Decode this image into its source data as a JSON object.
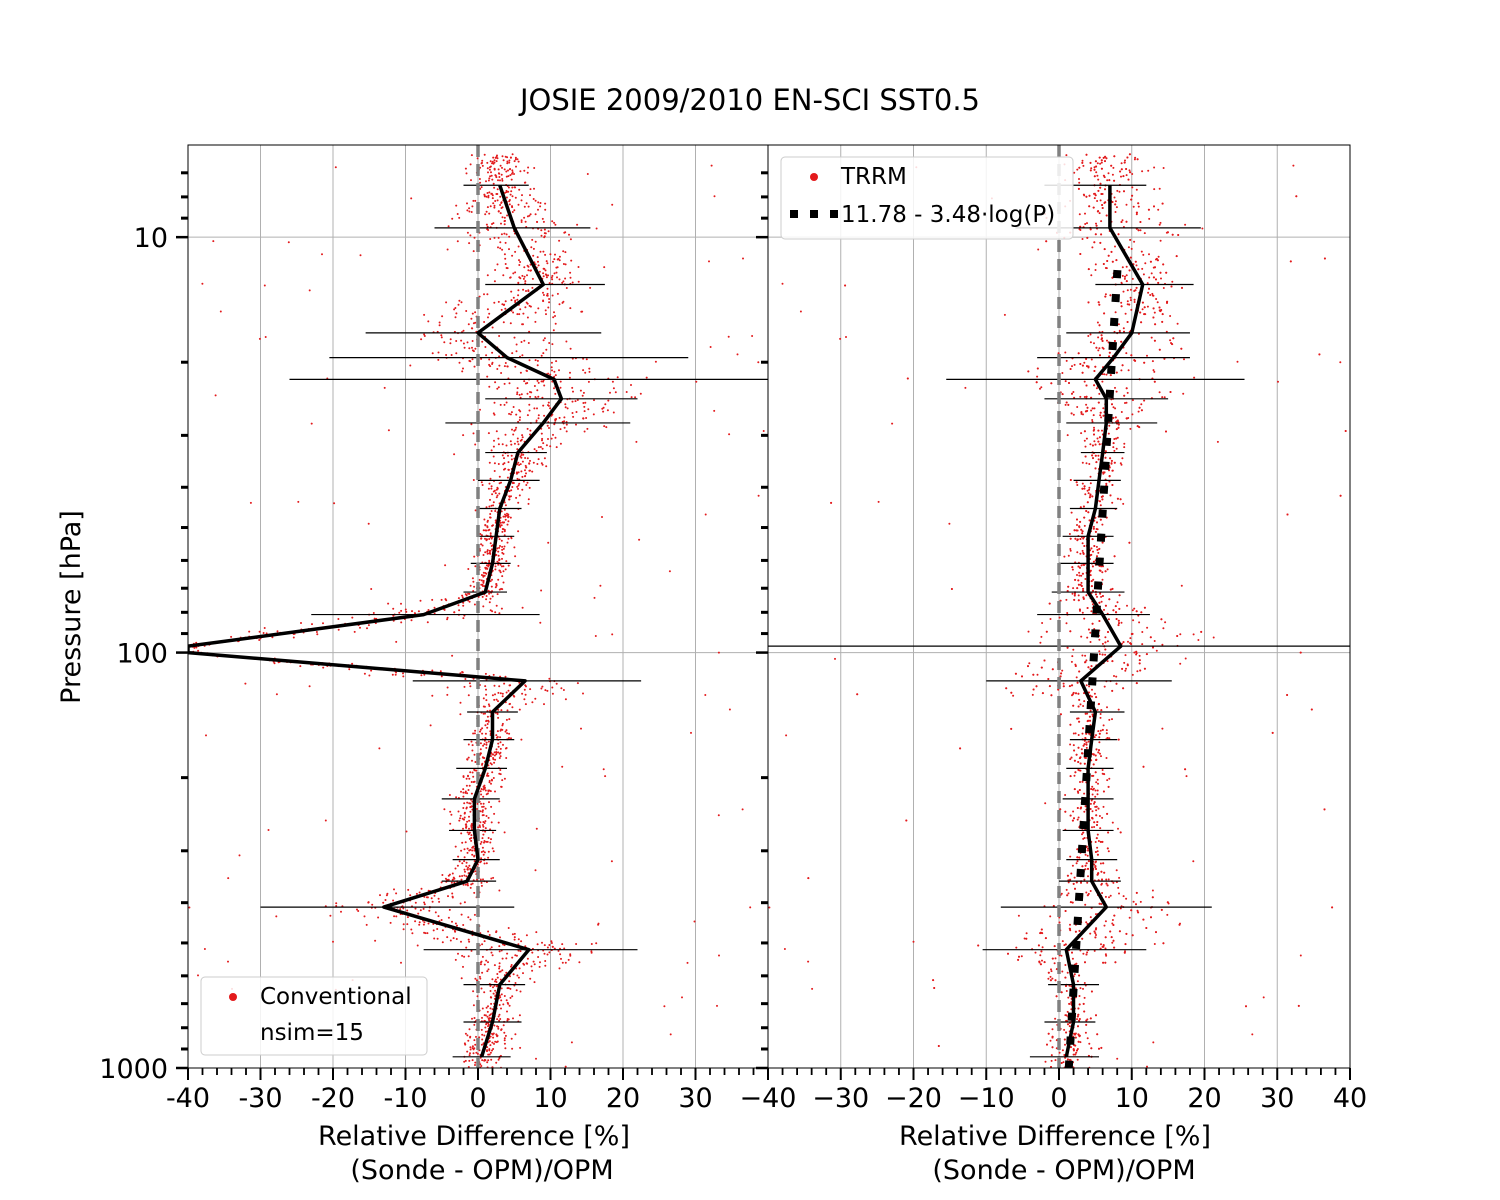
{
  "figure": {
    "title": "JOSIE 2009/2010 EN-SCI SST0.5",
    "ylabel": "Pressure [hPa]"
  },
  "chart_data": [
    {
      "type": "scatter",
      "panel": "left",
      "xlabel_line1": "Relative Difference [%]",
      "xlabel_line2": "(Sonde - OPM)/OPM",
      "xlim": [
        -40,
        40
      ],
      "ylim": [
        1000,
        6
      ],
      "yscale": "log",
      "grid": true,
      "xtick_labels": [
        "-40",
        "-30",
        "-20",
        "-10",
        "0",
        "10",
        "20",
        "30"
      ],
      "ytick_labels": [
        "10",
        "100",
        "1000"
      ],
      "legend_position": "lower-left",
      "legend": [
        "Conventional",
        "nsim=15"
      ],
      "scatter_color": "#e31a1c",
      "series": [
        {
          "name": "Conventional",
          "kind": "median-profile",
          "points": [
            {
              "p": 7.5,
              "x": 3,
              "lo": -2,
              "hi": 7
            },
            {
              "p": 9.5,
              "x": 5,
              "lo": -6,
              "hi": 15.5
            },
            {
              "p": 13,
              "x": 9,
              "lo": 1,
              "hi": 17.5
            },
            {
              "p": 17,
              "x": 0,
              "lo": -15.5,
              "hi": 17
            },
            {
              "p": 19.5,
              "x": 4,
              "lo": -20.5,
              "hi": 29
            },
            {
              "p": 22,
              "x": 10.5,
              "lo": -26,
              "hi": 40
            },
            {
              "p": 24.5,
              "x": 11.5,
              "lo": 1,
              "hi": 22
            },
            {
              "p": 28,
              "x": 9,
              "lo": -4.5,
              "hi": 21
            },
            {
              "p": 33,
              "x": 5.5,
              "lo": 1,
              "hi": 9.5
            },
            {
              "p": 38.5,
              "x": 4.5,
              "lo": 0,
              "hi": 8.5
            },
            {
              "p": 45,
              "x": 3,
              "lo": 0,
              "hi": 6
            },
            {
              "p": 52.5,
              "x": 2.5,
              "lo": 0,
              "hi": 5
            },
            {
              "p": 61,
              "x": 2,
              "lo": -1,
              "hi": 4.5
            },
            {
              "p": 71.5,
              "x": 1,
              "lo": -2,
              "hi": 4
            },
            {
              "p": 81,
              "x": -7.5,
              "lo": -23,
              "hi": 8.5
            },
            {
              "p": 96.5,
              "x": -40,
              "lo": -40,
              "hi": -40
            },
            {
              "p": 100,
              "x": -40,
              "lo": -40,
              "hi": -40
            },
            {
              "p": 117,
              "x": 6.5,
              "lo": -9,
              "hi": 22.5
            },
            {
              "p": 139,
              "x": 2,
              "lo": -1.5,
              "hi": 5.5
            },
            {
              "p": 162,
              "x": 2,
              "lo": -2,
              "hi": 5
            },
            {
              "p": 190,
              "x": 1,
              "lo": -3,
              "hi": 4
            },
            {
              "p": 225,
              "x": -0.5,
              "lo": -5,
              "hi": 3
            },
            {
              "p": 268,
              "x": -0.5,
              "lo": -4,
              "hi": 2.5
            },
            {
              "p": 315,
              "x": 0,
              "lo": -3.5,
              "hi": 3
            },
            {
              "p": 355,
              "x": -1.5,
              "lo": -5,
              "hi": 2.5
            },
            {
              "p": 410,
              "x": -13,
              "lo": -30,
              "hi": 5
            },
            {
              "p": 519,
              "x": 7,
              "lo": -7.5,
              "hi": 22
            },
            {
              "p": 630,
              "x": 3,
              "lo": -2,
              "hi": 6.5
            },
            {
              "p": 775,
              "x": 2,
              "lo": -2,
              "hi": 6
            },
            {
              "p": 940,
              "x": 0.5,
              "lo": -3.5,
              "hi": 4.5
            }
          ]
        }
      ]
    },
    {
      "type": "scatter",
      "panel": "right",
      "xlabel_line1": "Relative Difference [%]",
      "xlabel_line2": "(Sonde - OPM)/OPM",
      "xlim": [
        -40,
        40
      ],
      "ylim": [
        1000,
        6
      ],
      "yscale": "log",
      "grid": true,
      "xtick_labels": [
        "−40",
        "−30",
        "−20",
        "−10",
        "0",
        "10",
        "20",
        "30",
        "40"
      ],
      "legend_position": "upper-left",
      "legend": [
        "TRRM",
        "11.78 - 3.48·log(P)"
      ],
      "scatter_color": "#e31a1c",
      "fit": {
        "name": "11.78 - 3.48·log(P)",
        "a": 11.78,
        "b": -3.48,
        "p_range": [
          12,
          1000
        ]
      },
      "series": [
        {
          "name": "TRRM",
          "kind": "median-profile",
          "points": [
            {
              "p": 7.5,
              "x": 7,
              "lo": -2,
              "hi": 12
            },
            {
              "p": 9.5,
              "x": 7,
              "lo": -6,
              "hi": 19.5
            },
            {
              "p": 13,
              "x": 11.5,
              "lo": 5,
              "hi": 18.5
            },
            {
              "p": 17,
              "x": 10,
              "lo": 1,
              "hi": 18
            },
            {
              "p": 19.5,
              "x": 7.5,
              "lo": -3,
              "hi": 18
            },
            {
              "p": 22,
              "x": 5,
              "lo": -15.5,
              "hi": 25.5
            },
            {
              "p": 24.5,
              "x": 6.5,
              "lo": -2,
              "hi": 15
            },
            {
              "p": 28,
              "x": 6.5,
              "lo": 1,
              "hi": 13.5
            },
            {
              "p": 33,
              "x": 6,
              "lo": 3,
              "hi": 9
            },
            {
              "p": 38.5,
              "x": 5.5,
              "lo": 2,
              "hi": 8.5
            },
            {
              "p": 45,
              "x": 5,
              "lo": 1.5,
              "hi": 8
            },
            {
              "p": 52.5,
              "x": 4,
              "lo": 0.5,
              "hi": 7.5
            },
            {
              "p": 61,
              "x": 4,
              "lo": 0,
              "hi": 7.5
            },
            {
              "p": 71.5,
              "x": 4,
              "lo": -1,
              "hi": 9
            },
            {
              "p": 81,
              "x": 6,
              "lo": -3,
              "hi": 12.5
            },
            {
              "p": 96.5,
              "x": 8.5,
              "lo": -40,
              "hi": 40
            },
            {
              "p": 117,
              "x": 3,
              "lo": -10,
              "hi": 15.5
            },
            {
              "p": 139,
              "x": 5,
              "lo": 1.5,
              "hi": 9
            },
            {
              "p": 162,
              "x": 4.5,
              "lo": 1.5,
              "hi": 8
            },
            {
              "p": 190,
              "x": 4,
              "lo": 1,
              "hi": 7.5
            },
            {
              "p": 225,
              "x": 4,
              "lo": 0.5,
              "hi": 7.5
            },
            {
              "p": 268,
              "x": 4,
              "lo": 0.5,
              "hi": 7.5
            },
            {
              "p": 315,
              "x": 4.5,
              "lo": 1,
              "hi": 8
            },
            {
              "p": 355,
              "x": 4.5,
              "lo": 0,
              "hi": 8.5
            },
            {
              "p": 410,
              "x": 6.5,
              "lo": -8,
              "hi": 21
            },
            {
              "p": 519,
              "x": 1,
              "lo": -10.5,
              "hi": 12
            },
            {
              "p": 630,
              "x": 2,
              "lo": -1.5,
              "hi": 5.5
            },
            {
              "p": 775,
              "x": 2,
              "lo": -2,
              "hi": 5
            },
            {
              "p": 940,
              "x": 1,
              "lo": -4,
              "hi": 5.5
            }
          ]
        }
      ]
    }
  ]
}
